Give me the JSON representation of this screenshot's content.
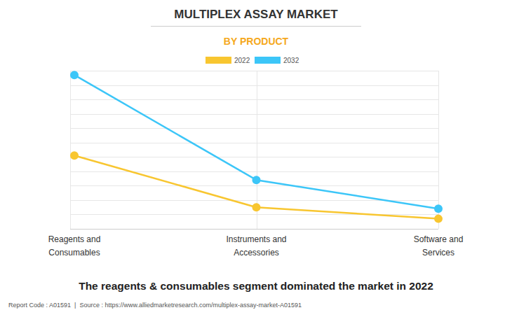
{
  "chart_data": {
    "type": "line",
    "title": "MULTIPLEX ASSAY MARKET",
    "subtitle": "BY PRODUCT",
    "categories": [
      "Reagents and Consumables",
      "Instruments and Accessories",
      "Software and Services"
    ],
    "series": [
      {
        "name": "2022",
        "color": "#f8c630",
        "values": [
          5.1,
          1.5,
          0.7
        ],
        "marker": "circle"
      },
      {
        "name": "2032",
        "color": "#3cc6f8",
        "values": [
          10.7,
          3.4,
          1.4
        ],
        "marker": "circle"
      }
    ],
    "ylim": [
      0,
      11
    ],
    "yticks": [
      0,
      1,
      2,
      3,
      4,
      5,
      6,
      7,
      8,
      9,
      10,
      11
    ],
    "grid": true,
    "legend": "top",
    "tick_labels": "x",
    "annotations": [
      "The reagents & consumables segment dominated the market in 2022",
      "Report Code : A01591  |  Source : https://www.alliedmarketresearch.com/multiplex-assay-market-A01591"
    ]
  }
}
